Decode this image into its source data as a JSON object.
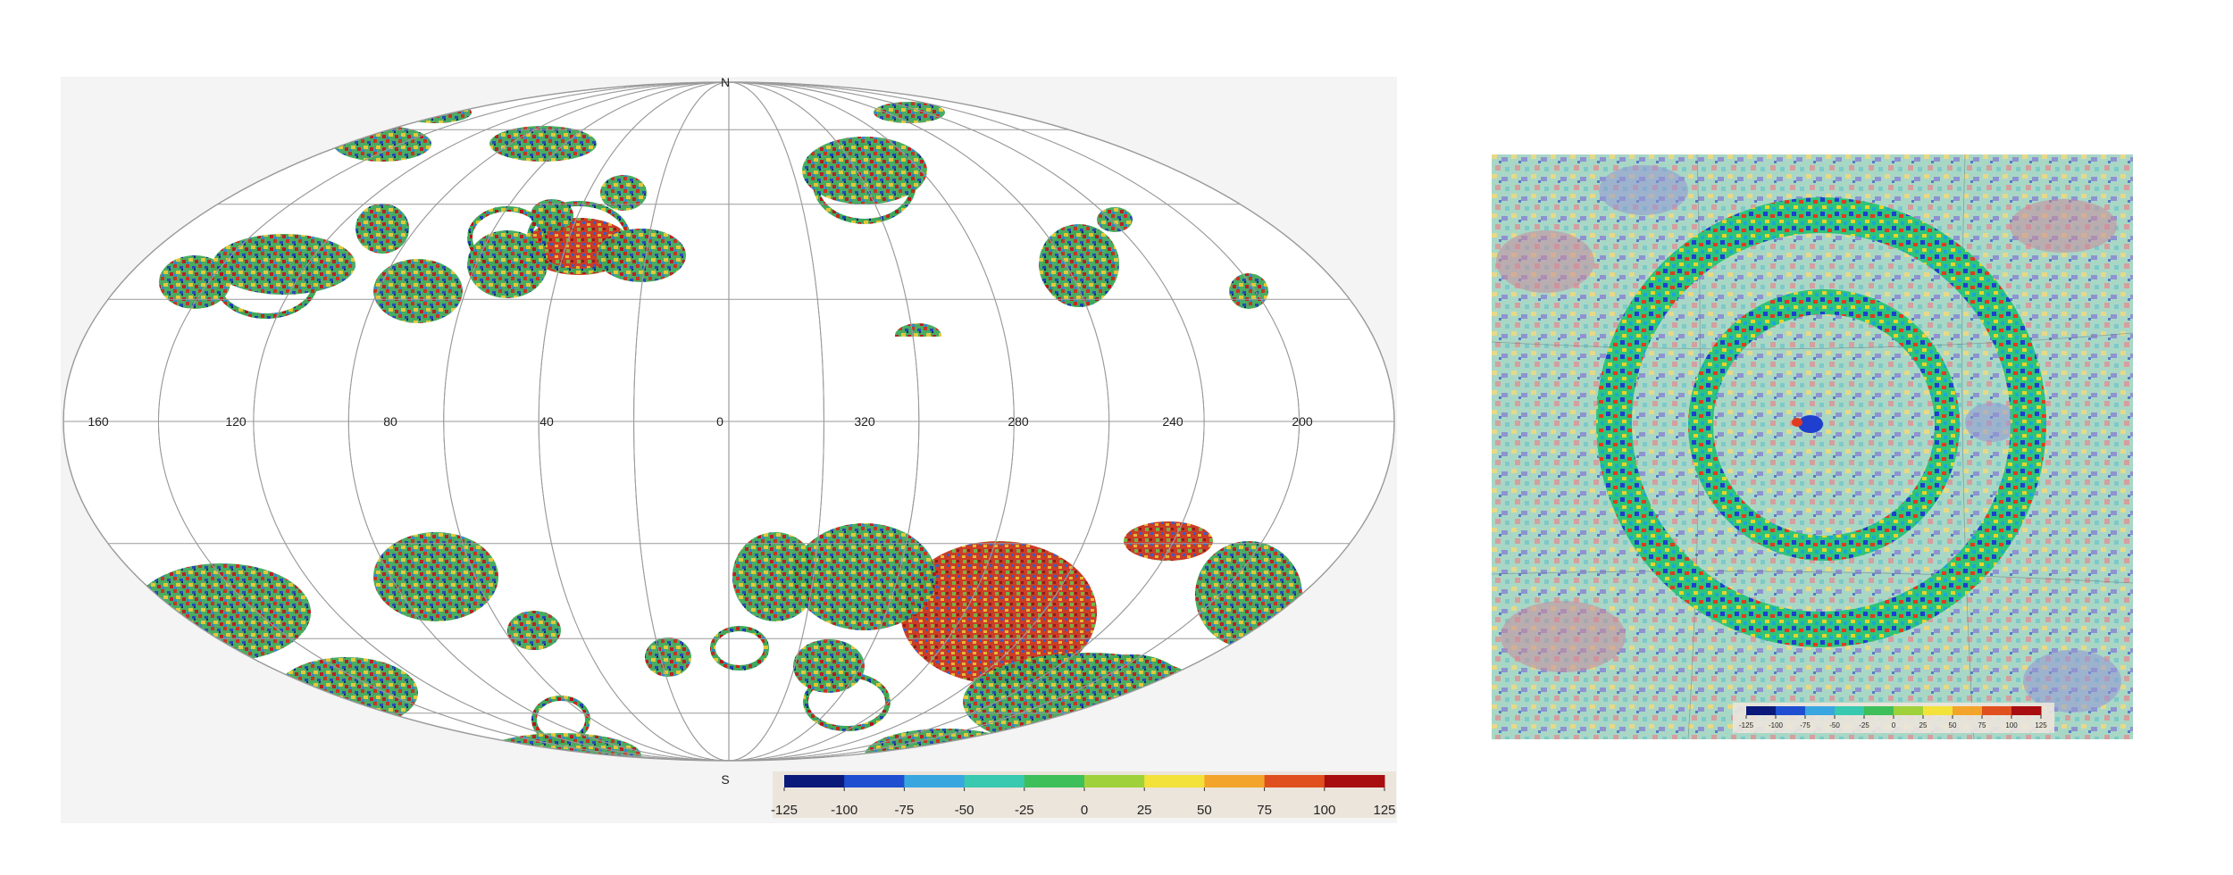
{
  "left_map": {
    "pole_north": "N",
    "pole_south": "S",
    "longitude_labels": [
      "160",
      "120",
      "80",
      "40",
      "0",
      "320",
      "280",
      "240",
      "200"
    ],
    "colorbar": {
      "ticks": [
        "-125",
        "-100",
        "-75",
        "-50",
        "-25",
        "0",
        "25",
        "50",
        "75",
        "100",
        "125"
      ],
      "colors": [
        "#0b1a7a",
        "#1f4fd0",
        "#3aa6e0",
        "#38c9b0",
        "#3fbf5a",
        "#9fd23a",
        "#f2e23a",
        "#f2a52a",
        "#e0501f",
        "#a80d10"
      ]
    },
    "galactic_plane_mask": "white"
  },
  "right_map": {
    "colorbar": {
      "ticks": [
        "-125",
        "-100",
        "-75",
        "-50",
        "-25",
        "0",
        "25",
        "50",
        "75",
        "100",
        "125"
      ],
      "colors": [
        "#0b1a7a",
        "#1f4fd0",
        "#3aa6e0",
        "#38c9b0",
        "#3fbf5a",
        "#9fd23a",
        "#f2e23a",
        "#f2a52a",
        "#e0501f",
        "#a80d10"
      ]
    }
  }
}
